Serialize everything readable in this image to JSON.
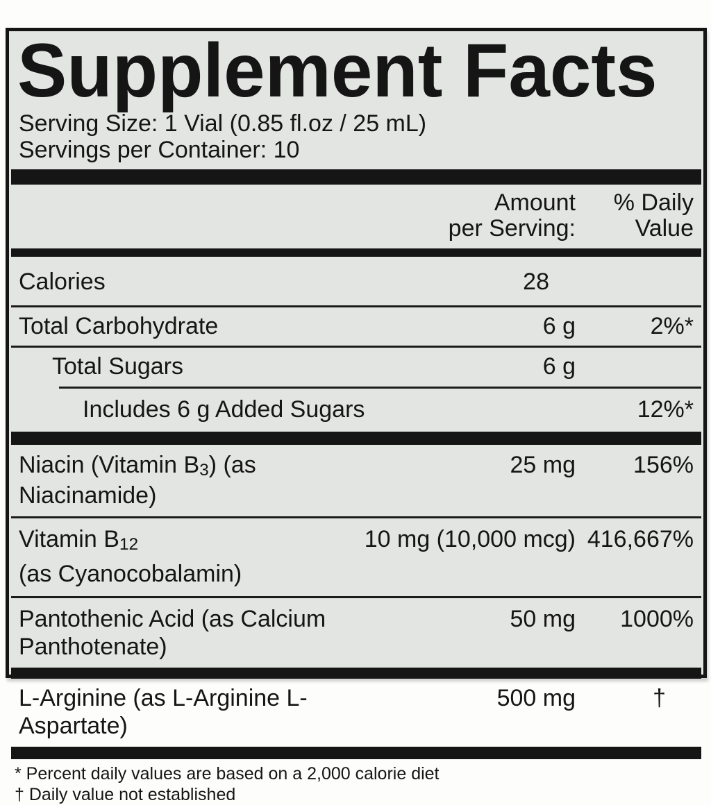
{
  "label": {
    "title": "Supplement Facts",
    "serving_size": "Serving Size: 1 Vial (0.85 fl.oz / 25 mL)",
    "servings_per_container": "Servings per Container: 10",
    "columns": {
      "amount_line1": "Amount",
      "amount_line2": "per Serving:",
      "dv_line1": "% Daily",
      "dv_line2": "Value"
    },
    "rows": {
      "calories": {
        "name": "Calories",
        "amount": "28",
        "dv": ""
      },
      "total_carbohydrate": {
        "name": "Total Carbohydrate",
        "amount": "6 g",
        "dv": "2%*"
      },
      "total_sugars": {
        "name": "Total Sugars",
        "amount": "6 g",
        "dv": ""
      },
      "added_sugars": {
        "name": "Includes 6 g Added Sugars",
        "amount": "",
        "dv": "12%*"
      },
      "niacin": {
        "name_pre": "Niacin (Vitamin B",
        "name_sub": "3",
        "name_post": ") (as Niacinamide)",
        "amount": "25 mg",
        "dv": "156%"
      },
      "vitamin_b12": {
        "name_pre": "Vitamin B",
        "name_sub": "12",
        "name_line2": "(as Cyanocobalamin)",
        "amount": "10 mg (10,000 mcg)",
        "dv": "416,667%"
      },
      "pantothenic_acid": {
        "name": "Pantothenic Acid (as Calcium Panthotenate)",
        "amount": "50 mg",
        "dv": "1000%"
      },
      "l_arginine": {
        "name": "L-Arginine (as L-Arginine L-Aspartate)",
        "amount": "500 mg",
        "dv": "†"
      }
    },
    "footnotes": {
      "percent": "* Percent daily values are based on a 2,000 calorie diet",
      "dagger": "† Daily value not established"
    },
    "colors": {
      "panel_bg": "#e3e5e2",
      "ink": "#151515",
      "page_bg": "#fdfdfb"
    }
  }
}
